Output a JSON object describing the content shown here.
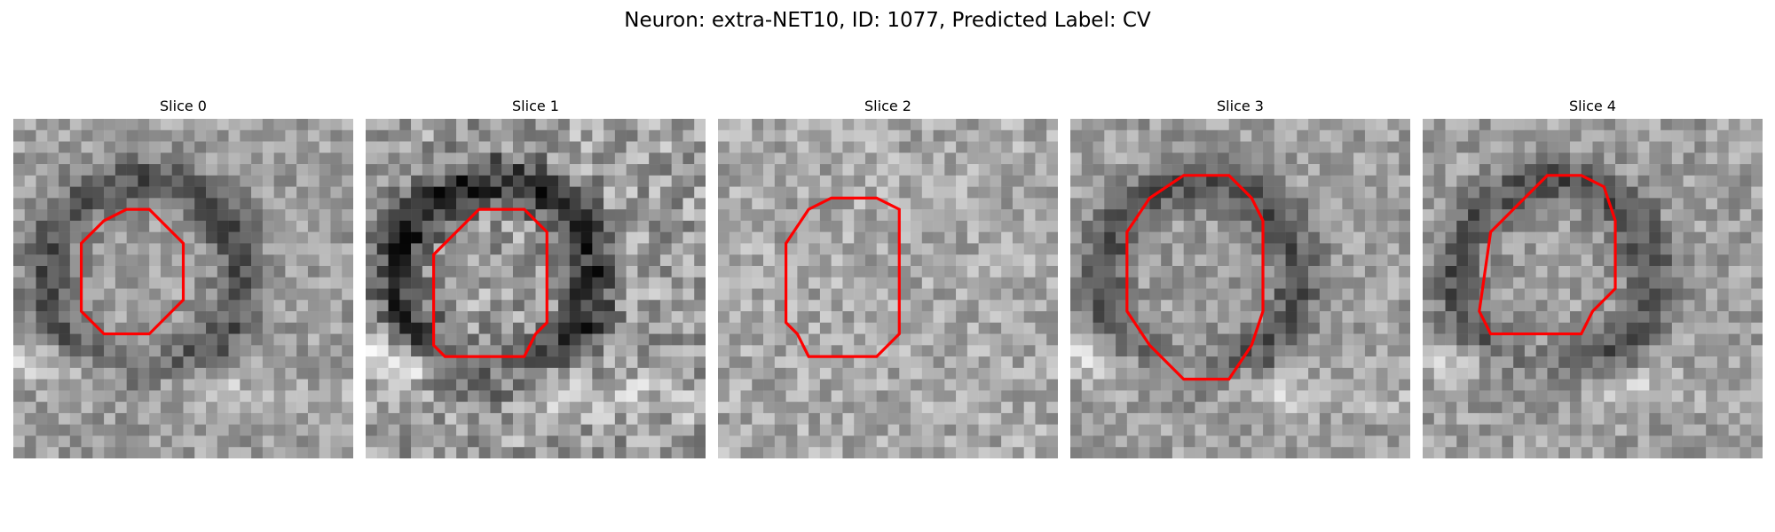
{
  "suptitle": "Neuron: extra-NET10, ID: 1077, Predicted Label: CV",
  "outline_color": "#ff0000",
  "panels": [
    {
      "title": "Slice 0",
      "contrast": "medium",
      "outline": [
        [
          10,
          8
        ],
        [
          12,
          8
        ],
        [
          13,
          9
        ],
        [
          15,
          11
        ],
        [
          15,
          16
        ],
        [
          12,
          19
        ],
        [
          8,
          19
        ],
        [
          6,
          17
        ],
        [
          6,
          11
        ],
        [
          8,
          9
        ]
      ]
    },
    {
      "title": "Slice 1",
      "contrast": "high",
      "outline": [
        [
          10,
          8
        ],
        [
          14,
          8
        ],
        [
          16,
          10
        ],
        [
          16,
          18
        ],
        [
          15,
          19
        ],
        [
          14,
          21
        ],
        [
          7,
          21
        ],
        [
          6,
          20
        ],
        [
          6,
          12
        ],
        [
          8,
          10
        ]
      ]
    },
    {
      "title": "Slice 2",
      "contrast": "low",
      "outline": [
        [
          10,
          7
        ],
        [
          14,
          7
        ],
        [
          16,
          8
        ],
        [
          16,
          19
        ],
        [
          14,
          21
        ],
        [
          8,
          21
        ],
        [
          7,
          19
        ],
        [
          6,
          18
        ],
        [
          6,
          11
        ],
        [
          8,
          8
        ]
      ]
    },
    {
      "title": "Slice 3",
      "contrast": "medium",
      "outline": [
        [
          10,
          5
        ],
        [
          14,
          5
        ],
        [
          16,
          7
        ],
        [
          17,
          9
        ],
        [
          17,
          17
        ],
        [
          16,
          20
        ],
        [
          14,
          23
        ],
        [
          10,
          23
        ],
        [
          7,
          20
        ],
        [
          5,
          17
        ],
        [
          5,
          10
        ],
        [
          7,
          7
        ]
      ]
    },
    {
      "title": "Slice 4",
      "contrast": "medium",
      "outline": [
        [
          11,
          5
        ],
        [
          14,
          5
        ],
        [
          16,
          6
        ],
        [
          17,
          9
        ],
        [
          17,
          15
        ],
        [
          15,
          17
        ],
        [
          14,
          19
        ],
        [
          6,
          19
        ],
        [
          5,
          17
        ],
        [
          6,
          10
        ],
        [
          8,
          8
        ]
      ]
    }
  ]
}
